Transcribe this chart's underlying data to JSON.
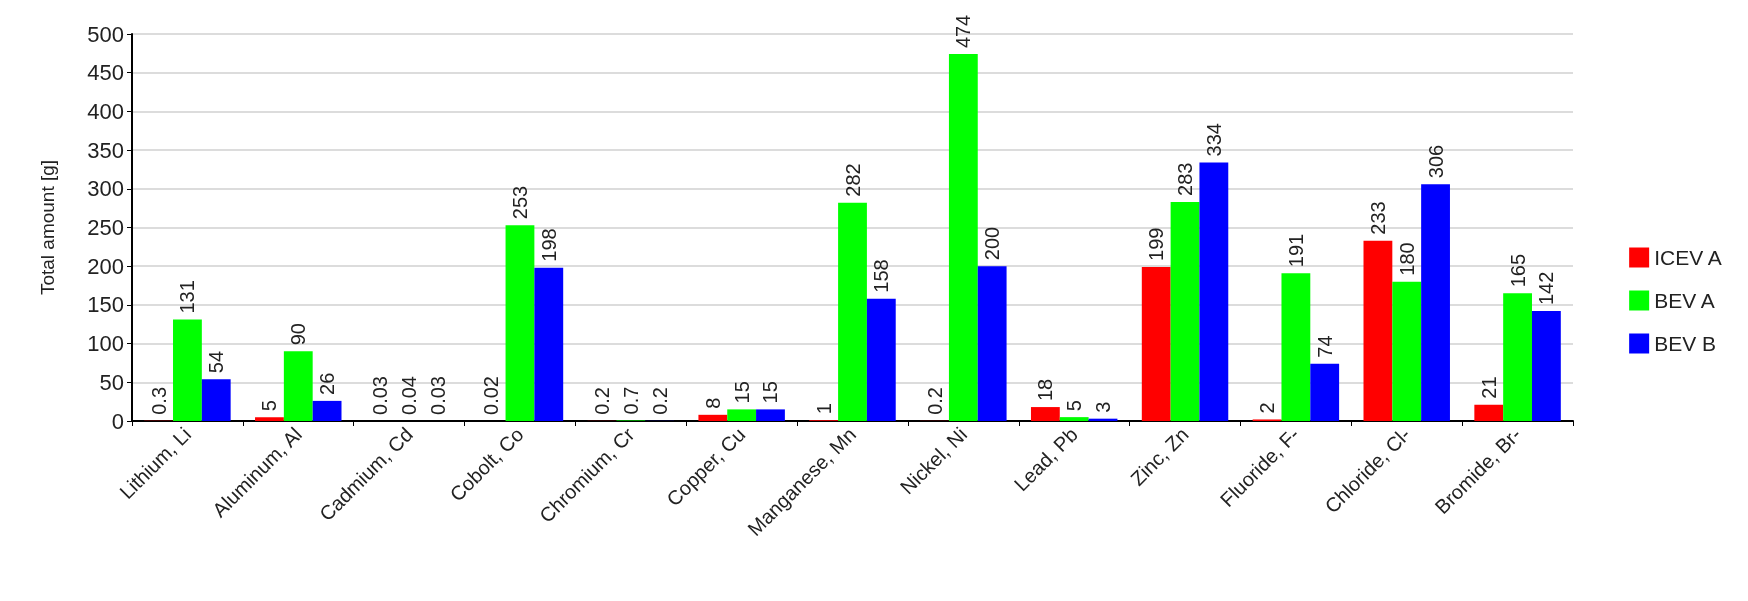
{
  "chart_data": {
    "type": "bar",
    "ylabel": "Total amount [g]",
    "categories": [
      "Lithium, Li",
      "Aluminum, Al",
      "Cadmium, Cd",
      "Cobolt, Co",
      "Chromium, Cr",
      "Copper, Cu",
      "Manganese, Mn",
      "Nickel, Ni",
      "Lead, Pb",
      "Zinc, Zn",
      "Fluoride, F-",
      "Chloride, Cl-",
      "Bromide, Br-"
    ],
    "series": [
      {
        "name": "ICEV A",
        "color": "#ff0000",
        "values": [
          0.3,
          5,
          0.03,
          0.02,
          0.2,
          8,
          1,
          0.2,
          18,
          199,
          2,
          233,
          21
        ]
      },
      {
        "name": "BEV A",
        "color": "#00ff00",
        "values": [
          131,
          90,
          0.04,
          253,
          0.7,
          15,
          282,
          474,
          5,
          283,
          191,
          180,
          165
        ]
      },
      {
        "name": "BEV B",
        "color": "#0000ff",
        "values": [
          54,
          26,
          0.03,
          198,
          0.2,
          15,
          158,
          200,
          3,
          334,
          74,
          306,
          142
        ]
      }
    ],
    "ylim": [
      0,
      500
    ],
    "yticks": [
      0,
      50,
      100,
      150,
      200,
      250,
      300,
      350,
      400,
      450,
      500
    ],
    "grid": "y",
    "legend": "right",
    "data_labels": true
  }
}
